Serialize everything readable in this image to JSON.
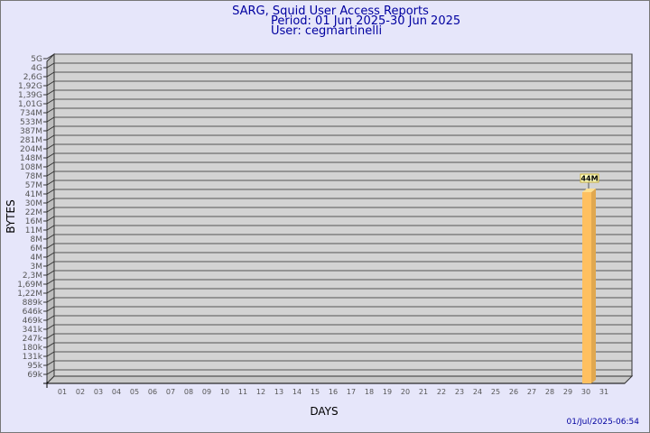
{
  "chart_data": {
    "type": "bar",
    "title": "SARG, Squid User Access Reports",
    "subtitle_lines": [
      "Period: 01 Jun 2025-30 Jun 2025",
      "User: cegmartinelli"
    ],
    "xlabel": "DAYS",
    "ylabel": "BYTES",
    "y_scale": "log",
    "y_ticks": [
      "5G",
      "4G",
      "2,6G",
      "1,92G",
      "1,39G",
      "1,01G",
      "734M",
      "533M",
      "387M",
      "281M",
      "204M",
      "148M",
      "108M",
      "78M",
      "57M",
      "41M",
      "30M",
      "22M",
      "16M",
      "11M",
      "8M",
      "6M",
      "4M",
      "3M",
      "2,3M",
      "1,69M",
      "1,22M",
      "889k",
      "646k",
      "469k",
      "341k",
      "247k",
      "180k",
      "131k",
      "95k",
      "69k"
    ],
    "ylim": [
      69000,
      5000000000
    ],
    "categories": [
      "01",
      "02",
      "03",
      "04",
      "05",
      "06",
      "07",
      "08",
      "09",
      "10",
      "11",
      "12",
      "13",
      "14",
      "15",
      "16",
      "17",
      "18",
      "19",
      "20",
      "21",
      "22",
      "23",
      "24",
      "25",
      "26",
      "27",
      "28",
      "29",
      "30",
      "31"
    ],
    "bars": [
      {
        "day": "30",
        "value": 44000000,
        "label": "44M"
      }
    ],
    "bar_color": "#ffc060",
    "plot_color": "#d3d3d3",
    "grid": true,
    "timestamp": "01/Jul/2025-06:54"
  }
}
